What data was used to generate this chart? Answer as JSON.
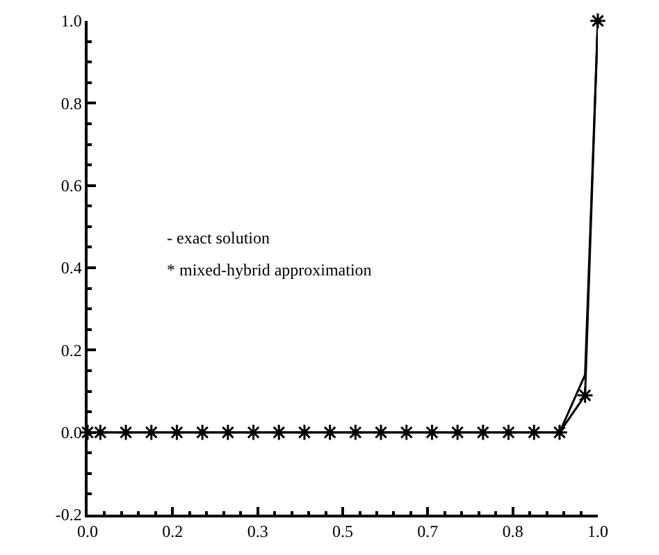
{
  "chart_data": {
    "type": "line",
    "x": [
      0,
      0.025,
      0.075,
      0.125,
      0.175,
      0.225,
      0.275,
      0.325,
      0.375,
      0.425,
      0.475,
      0.525,
      0.575,
      0.625,
      0.675,
      0.725,
      0.775,
      0.825,
      0.875,
      0.925,
      0.975,
      1.0
    ],
    "series": [
      {
        "color": "#000000",
        "marker": "cross",
        "values": [
          0,
          0,
          0,
          0,
          0,
          0,
          0,
          0,
          0,
          0,
          0,
          0,
          0,
          0,
          0,
          0,
          0,
          0,
          0,
          0,
          0.09,
          1.0
        ]
      },
      {
        "color": "#000000",
        "marker": "none",
        "values": [
          0,
          0,
          0,
          0,
          0,
          0,
          0,
          0,
          0,
          0,
          0,
          0,
          0,
          0,
          0,
          0,
          0,
          0,
          0,
          0,
          0.14,
          1.0
        ]
      }
    ],
    "xlim": [
      0,
      1.0
    ],
    "xticks": [
      {
        "value": 0,
        "label": "0.0"
      },
      {
        "value": 0.1667,
        "label": "0.2"
      },
      {
        "value": 0.3333,
        "label": "0.3"
      },
      {
        "value": 0.5,
        "label": "0.5"
      },
      {
        "value": 0.6667,
        "label": "0.7"
      },
      {
        "value": 0.8333,
        "label": "0.8"
      },
      {
        "value": 1.0,
        "label": "1.0"
      }
    ],
    "ylim": [
      -0.2,
      1.0
    ],
    "yticks": [
      {
        "value": -0.2,
        "label": "-0.2"
      },
      {
        "value": 0,
        "label": "0.0"
      },
      {
        "value": 0.2,
        "label": "0.2"
      },
      {
        "value": 0.4,
        "label": "0.4"
      },
      {
        "value": 0.6,
        "label": "0.6"
      },
      {
        "value": 0.8,
        "label": "0.8"
      },
      {
        "value": 1.0,
        "label": "1.0"
      }
    ],
    "annotations": [
      "- exact solution",
      "* mixed-hybrid approximation"
    ],
    "line_style": "solid"
  }
}
